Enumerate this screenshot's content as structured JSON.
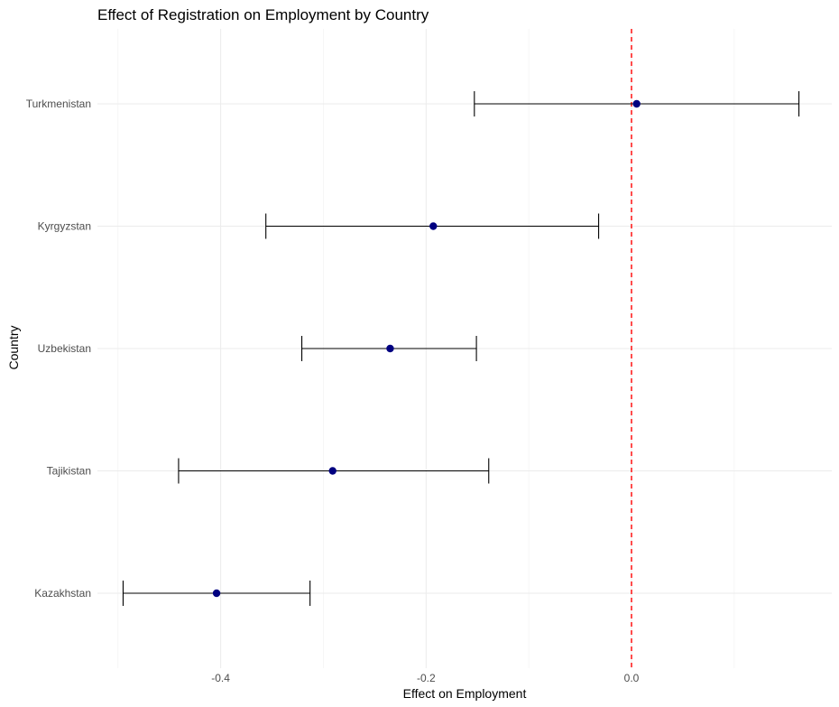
{
  "chart_data": {
    "type": "scatter",
    "title": "Effect of Registration on Employment by Country",
    "xlabel": "Effect on Employment",
    "ylabel": "Country",
    "xlim": [
      -0.52,
      0.195
    ],
    "x_ticks": [
      -0.4,
      -0.2,
      0.0
    ],
    "x_tick_labels": [
      "-0.4",
      "-0.2",
      "0.0"
    ],
    "categories": [
      "Kazakhstan",
      "Tajikistan",
      "Uzbekistan",
      "Kyrgyzstan",
      "Turkmenistan"
    ],
    "estimates": [
      -0.404,
      -0.291,
      -0.235,
      -0.193,
      0.005
    ],
    "ci_low": [
      -0.495,
      -0.441,
      -0.321,
      -0.356,
      -0.153
    ],
    "ci_high": [
      -0.313,
      -0.139,
      -0.151,
      -0.032,
      0.163
    ],
    "reference_line": 0,
    "grid": true,
    "colors": {
      "point": "#000080",
      "errorbar": "#000000",
      "reference": "#ff0000",
      "grid": "#ebebeb"
    }
  }
}
